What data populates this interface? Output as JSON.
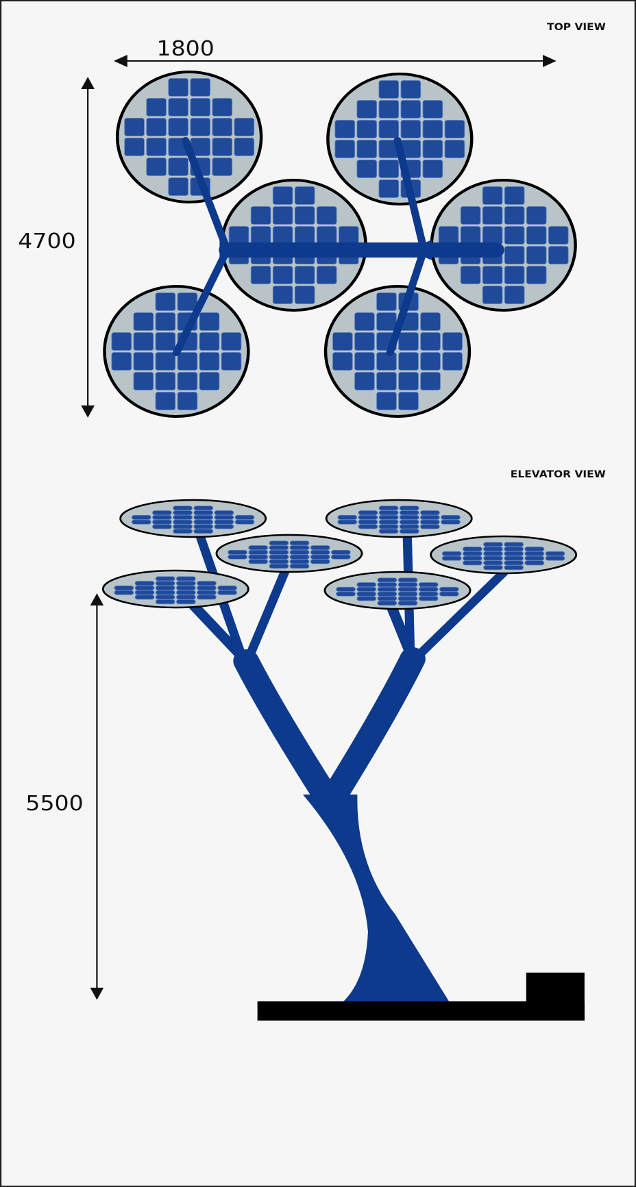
{
  "top_view": {
    "title": "TOP VIEW",
    "width_label": "1800",
    "height_label": "4700"
  },
  "elevation_view": {
    "title": "ELEVATOR VIEW",
    "height_label": "5500"
  }
}
